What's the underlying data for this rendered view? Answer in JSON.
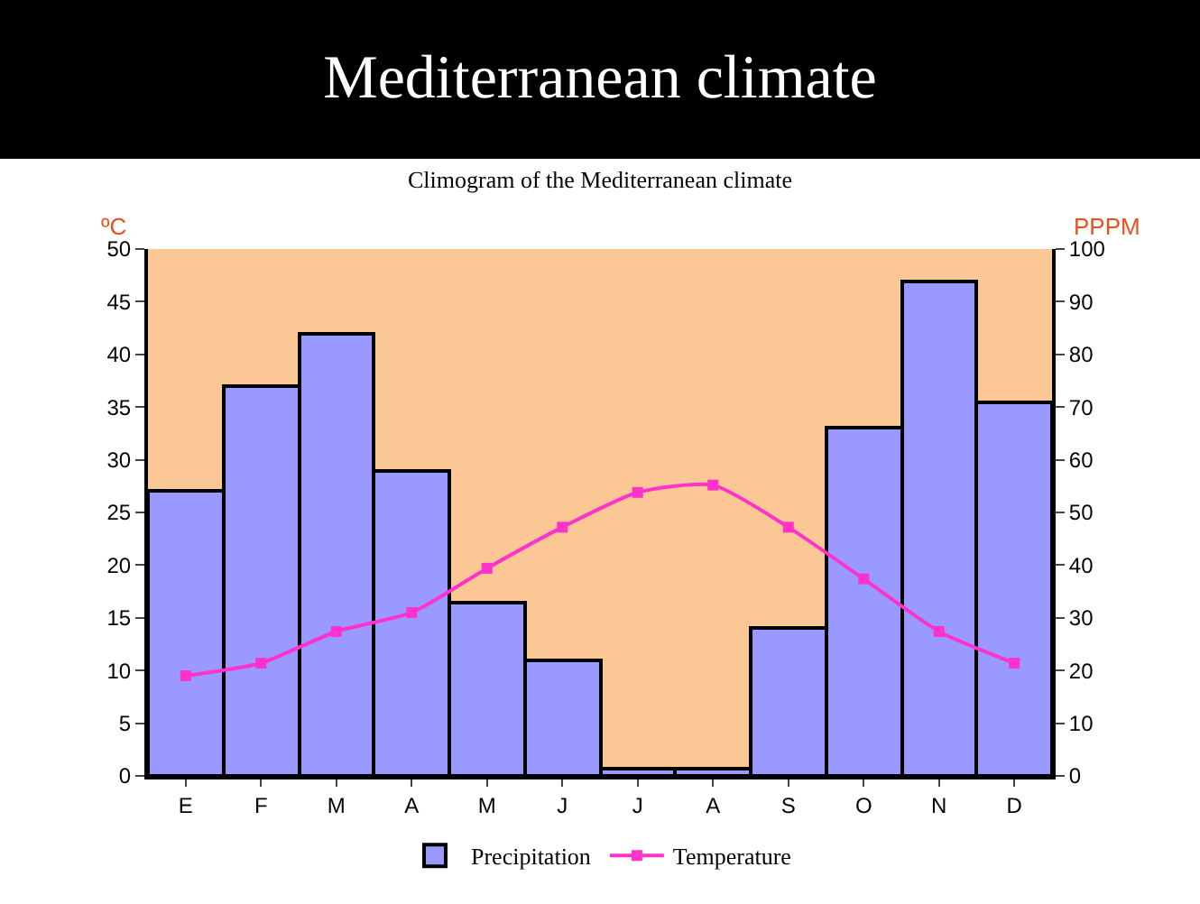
{
  "chart_data": {
    "type": "bar",
    "title": "Mediterranean climate",
    "subtitle": "Climogram of the Mediterranean climate",
    "ylabel": "ºC",
    "y2label": "PPPM",
    "categories": [
      "E",
      "F",
      "M",
      "A",
      "M",
      "J",
      "J",
      "A",
      "S",
      "O",
      "N",
      "D"
    ],
    "series": [
      {
        "name": "Precipitation",
        "axis": "y2",
        "color": "#9999ff",
        "values": [
          54,
          74,
          84,
          58,
          33,
          22,
          1.4,
          1.4,
          28,
          66,
          94,
          71
        ]
      },
      {
        "name": "Temperature",
        "type": "line",
        "axis": "y",
        "color": "#ff33cc",
        "marker": "square",
        "values": [
          9.5,
          10.7,
          13.7,
          15.5,
          19.7,
          23.6,
          26.9,
          27.6,
          23.6,
          18.7,
          13.7,
          10.7
        ]
      }
    ],
    "ylim": [
      0,
      50
    ],
    "yticks": [
      0,
      5,
      10,
      15,
      20,
      25,
      30,
      35,
      40,
      45,
      50
    ],
    "y2lim": [
      0,
      100
    ],
    "y2ticks": [
      0,
      10,
      20,
      30,
      40,
      50,
      60,
      70,
      80,
      90,
      100
    ],
    "grid": false,
    "legend": "bottom"
  }
}
